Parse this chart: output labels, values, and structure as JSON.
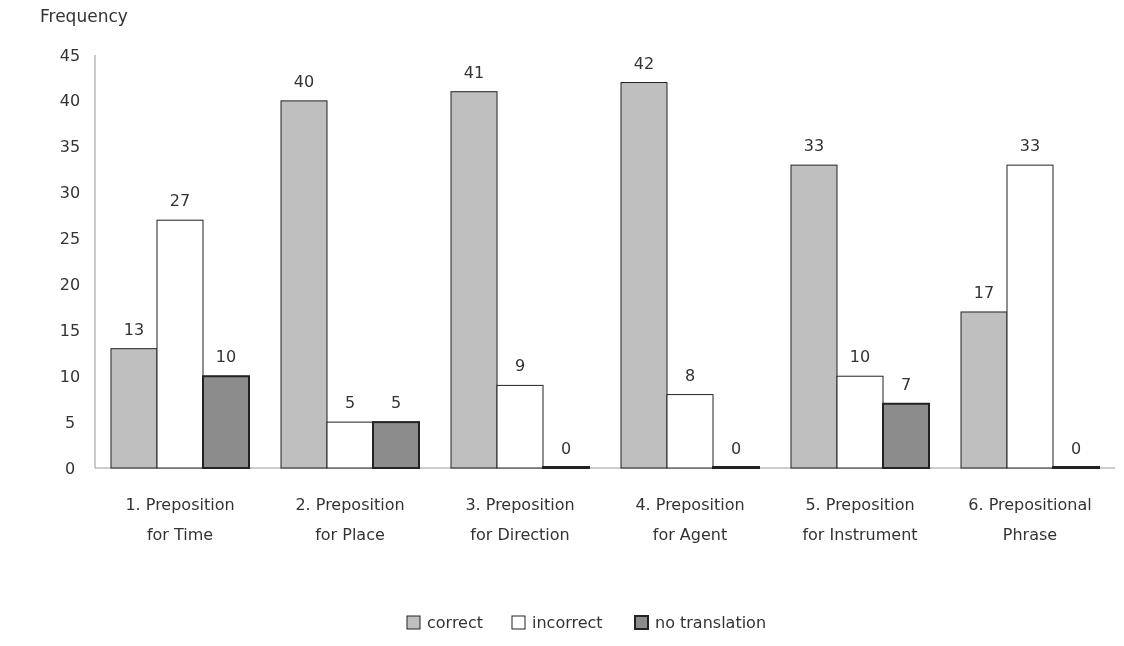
{
  "chart_data": {
    "type": "bar",
    "ylabel": "Frequency",
    "categories": [
      "1. Preposition\nfor Time",
      "2. Preposition\nfor Place",
      "3. Preposition\nfor Direction",
      "4. Preposition\nfor Agent",
      "5. Preposition\nfor Instrument",
      "6. Prepositional\nPhrase"
    ],
    "series": [
      {
        "name": "correct",
        "color": "#bfbfbf",
        "values": [
          13,
          40,
          41,
          42,
          33,
          17
        ]
      },
      {
        "name": "incorrect",
        "color": "#ffffff",
        "values": [
          27,
          5,
          9,
          8,
          10,
          33
        ]
      },
      {
        "name": "no translation",
        "color": "#8c8c8c",
        "values": [
          10,
          5,
          0,
          0,
          7,
          0
        ]
      }
    ],
    "ylim": [
      0,
      45
    ],
    "yticks": [
      0,
      5,
      10,
      15,
      20,
      25,
      30,
      35,
      40,
      45
    ],
    "data_labels": true,
    "grid": false,
    "legend": "bottom"
  }
}
